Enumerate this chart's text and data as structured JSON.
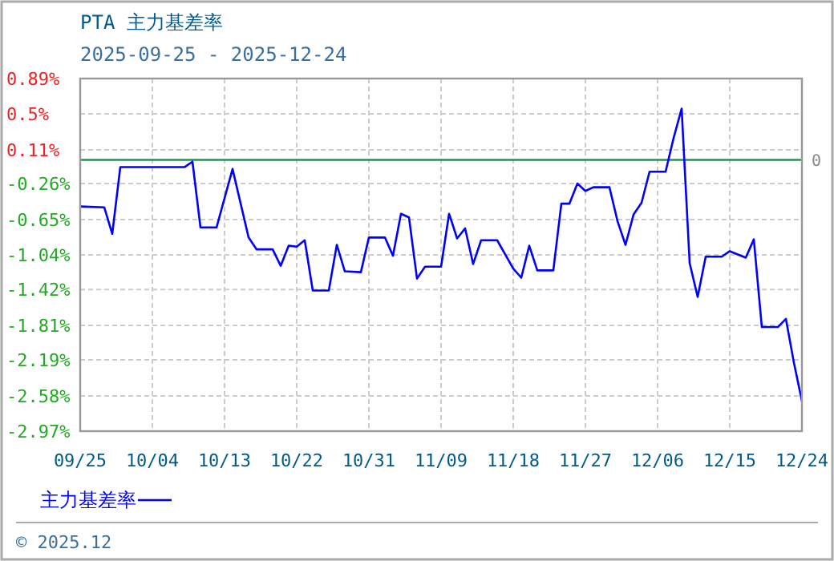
{
  "chart_data": {
    "type": "line",
    "title": "PTA 主力基差率",
    "subtitle": "2025-09-25 - 2025-12-24",
    "x": [
      "--09-25",
      "--09-28",
      "--09-29",
      "--09-30",
      "--10-08",
      "--10-09",
      "--10-10",
      "--10-12",
      "--10-14",
      "--10-16",
      "--10-17",
      "--10-19",
      "--10-20",
      "--10-21",
      "--10-22",
      "--10-23",
      "--10-24",
      "--10-26",
      "--10-27",
      "--10-28",
      "--10-30",
      "--10-31",
      "--11-02",
      "--11-03",
      "--11-04",
      "--11-05",
      "--11-06",
      "--11-07",
      "--11-09",
      "--11-10",
      "--11-11",
      "--11-12",
      "--11-13",
      "--11-14",
      "--11-16",
      "--11-18",
      "--11-19",
      "--11-20",
      "--11-21",
      "--11-23",
      "--11-24",
      "--11-25",
      "--11-26",
      "--11-27",
      "--11-28",
      "--11-30",
      "--12-01",
      "--12-02",
      "--12-03",
      "--12-04",
      "--12-05",
      "--12-07",
      "--12-08",
      "--12-09",
      "--12-10",
      "--12-11",
      "--12-12",
      "--12-14",
      "--12-15",
      "--12-17",
      "--12-18",
      "--12-19",
      "--12-21",
      "--12-22",
      "--12-23",
      "--12-24"
    ],
    "series": [
      {
        "name": "主力基差率",
        "color": "#0000ff",
        "values": [
          -0.51,
          -0.52,
          -0.81,
          -0.08,
          -0.08,
          -0.02,
          -0.74,
          -0.74,
          -0.1,
          -0.85,
          -0.98,
          -0.98,
          -1.16,
          -0.94,
          -0.95,
          -0.88,
          -1.43,
          -1.43,
          -0.93,
          -1.22,
          -1.23,
          -0.85,
          -0.85,
          -1.05,
          -0.59,
          -0.63,
          -1.3,
          -1.17,
          -1.17,
          -0.59,
          -0.86,
          -0.75,
          -1.14,
          -0.88,
          -0.88,
          -1.19,
          -1.29,
          -0.94,
          -1.21,
          -1.21,
          -0.48,
          -0.48,
          -0.26,
          -0.34,
          -0.3,
          -0.3,
          -0.67,
          -0.93,
          -0.6,
          -0.47,
          -0.13,
          -0.13,
          0.24,
          0.56,
          -1.13,
          -1.5,
          -1.06,
          -1.06,
          -1.0,
          -1.07,
          -0.87,
          -1.83,
          -1.83,
          -1.74,
          -2.22,
          -2.64
        ]
      }
    ],
    "xlim": [
      "--09-25",
      "--12-24"
    ],
    "xticks": [
      {
        "value": "--09-25",
        "label": "09/25"
      },
      {
        "value": "--10-04",
        "label": "10/04"
      },
      {
        "value": "--10-13",
        "label": "10/13"
      },
      {
        "value": "--10-22",
        "label": "10/22"
      },
      {
        "value": "--10-31",
        "label": "10/31"
      },
      {
        "value": "--11-09",
        "label": "11/09"
      },
      {
        "value": "--11-18",
        "label": "11/18"
      },
      {
        "value": "--11-27",
        "label": "11/27"
      },
      {
        "value": "--12-06",
        "label": "12/06"
      },
      {
        "value": "--12-15",
        "label": "12/15"
      },
      {
        "value": "--12-24",
        "label": "12/24"
      }
    ],
    "ylim": [
      -2.97,
      0.89
    ],
    "yticks": [
      {
        "value": 0.89,
        "label": "0.89%"
      },
      {
        "value": 0.504,
        "label": "0.5%"
      },
      {
        "value": 0.11,
        "label": "0.11%"
      },
      {
        "value": -0.26,
        "label": "-0.26%"
      },
      {
        "value": -0.654,
        "label": "-0.65%"
      },
      {
        "value": -1.04,
        "label": "-1.04%"
      },
      {
        "value": -1.42,
        "label": "-1.42%"
      },
      {
        "value": -1.812,
        "label": "-1.81%"
      },
      {
        "value": -2.19,
        "label": "-2.19%"
      },
      {
        "value": -2.584,
        "label": "-2.58%"
      },
      {
        "value": -2.97,
        "label": "-2.97%"
      }
    ],
    "ref_lines": [
      {
        "axis": "y",
        "value": 0,
        "label": "0",
        "color": "#2e8b57"
      }
    ],
    "grid": true,
    "legend": "bottom",
    "marker": "none",
    "line_style": "solid",
    "annotations": [
      "© 2025.12"
    ]
  }
}
